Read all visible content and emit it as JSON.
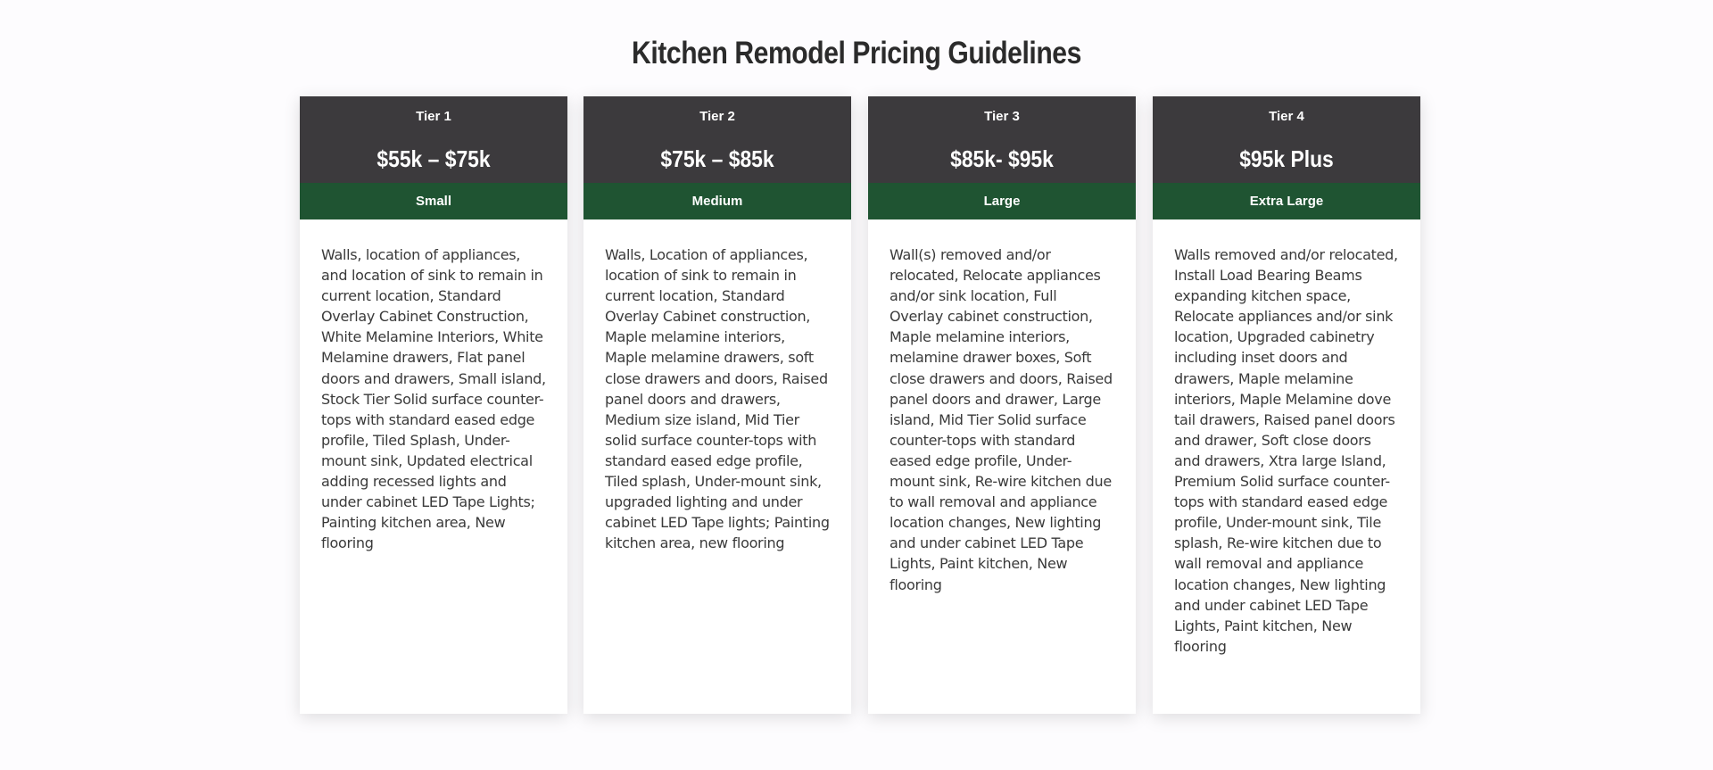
{
  "page": {
    "title": "Kitchen Remodel Pricing Guidelines"
  },
  "colors": {
    "header_bg": "#3c3a3d",
    "size_bar_bg": "#1f5432",
    "card_bg": "#ffffff",
    "page_bg": "#fdfcfe"
  },
  "tiers": [
    {
      "label": "Tier 1",
      "price": "$55k – $75k",
      "size": "Small",
      "description": "Walls, location of appliances, and location of sink to remain in current location, Standard Overlay Cabinet Construction, White Melamine Interiors, White Melamine drawers, Flat panel doors and drawers, Small island, Stock Tier Solid surface counter-tops with standard eased edge profile, Tiled Splash, Under-mount sink, Updated electrical adding recessed lights and under cabinet LED Tape Lights; Painting kitchen area, New flooring"
    },
    {
      "label": "Tier 2",
      "price": "$75k – $85k",
      "size": "Medium",
      "description": "Walls, Location of appliances, location of sink to remain in current location, Standard Overlay Cabinet construction, Maple melamine interiors, Maple melamine drawers, soft close drawers and doors, Raised panel doors and drawers, Medium size island, Mid Tier solid surface counter-tops with standard eased edge profile, Tiled splash, Under-mount sink, upgraded lighting and under cabinet LED Tape lights; Painting kitchen area, new flooring"
    },
    {
      "label": "Tier 3",
      "price": "$85k- $95k",
      "size": "Large",
      "description": "Wall(s) removed and/or relocated, Relocate appliances and/or sink location, Full Overlay cabinet construction, Maple melamine interiors, melamine drawer boxes, Soft close drawers and doors, Raised panel doors and drawer, Large island, Mid Tier Solid surface counter-tops with standard eased edge profile, Under-mount sink, Re-wire kitchen due to wall removal and appliance location changes, New lighting and under cabinet LED Tape Lights, Paint kitchen, New flooring"
    },
    {
      "label": "Tier 4",
      "price": "$95k Plus",
      "size": "Extra Large",
      "description": "Walls removed and/or relocated, Install Load Bearing Beams expanding kitchen space, Relocate appliances and/or sink location, Upgraded cabinetry including inset doors and drawers, Maple melamine interiors, Maple Melamine dove tail drawers, Raised panel doors and drawer, Soft close doors and drawers, Xtra large Island, Premium Solid surface counter-tops with standard eased edge profile, Under-mount sink, Tile splash, Re-wire kitchen due to wall removal and appliance location changes, New lighting and under cabinet LED Tape Lights, Paint kitchen, New flooring"
    }
  ]
}
